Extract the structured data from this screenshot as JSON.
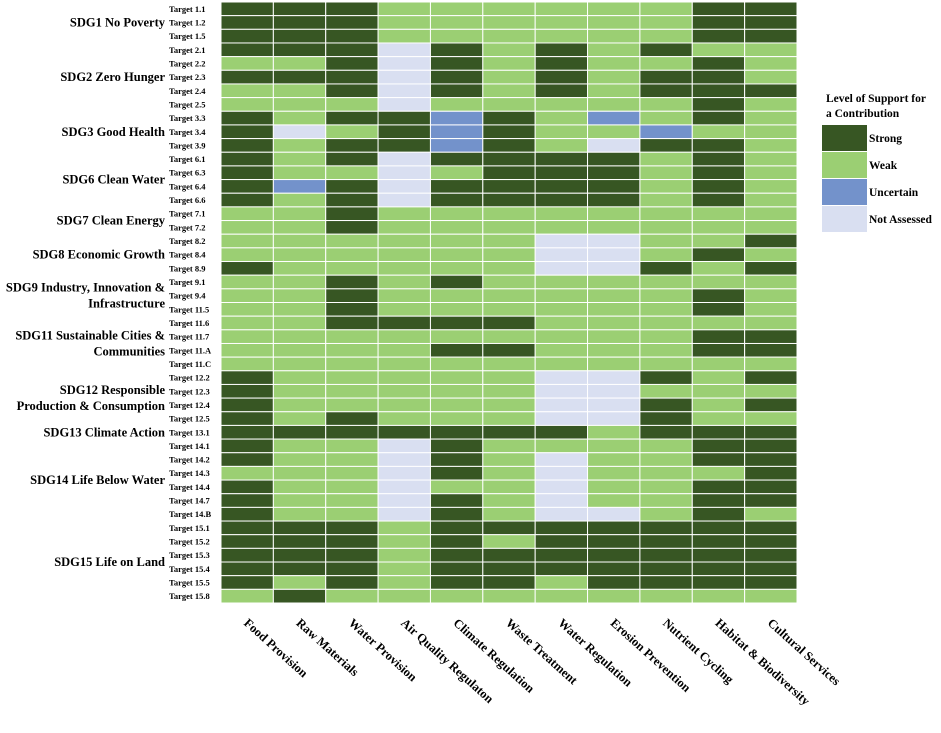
{
  "chart_data": {
    "type": "heatmap",
    "title": "",
    "xlabel": "",
    "ylabel": "",
    "columns": [
      "Food Provision",
      "Raw Materials",
      "Water Provision",
      "Air Quality Regulaton",
      "Climate Regulation",
      "Waste Treatment",
      "Water Regulation",
      "Erosion Prevention",
      "Nutrient Cycling",
      "Habitat & Biodiversity",
      "Cultural Services"
    ],
    "legend": {
      "title_lines": [
        "Level of Support for",
        "a Contribution"
      ],
      "items": [
        {
          "key": "S",
          "label": "Strong",
          "color": "#375623"
        },
        {
          "key": "W",
          "label": "Weak",
          "color": "#9BCF73"
        },
        {
          "key": "U",
          "label": "Uncertain",
          "color": "#7392CB"
        },
        {
          "key": "N",
          "label": "Not Assessed",
          "color": "#D9DFF1"
        }
      ]
    },
    "groups": [
      {
        "label_lines": [
          "SDG1 No Poverty"
        ],
        "targets": [
          "Target 1.1",
          "Target 1.2",
          "Target 1.5"
        ]
      },
      {
        "label_lines": [
          "SDG2 Zero Hunger"
        ],
        "targets": [
          "Target 2.1",
          "Target 2.2",
          "Target 2.3",
          "Target 2.4",
          "Target 2.5"
        ]
      },
      {
        "label_lines": [
          "SDG3 Good Health"
        ],
        "targets": [
          "Target 3.3",
          "Target 3.4",
          "Target 3.9"
        ]
      },
      {
        "label_lines": [
          "SDG6 Clean Water"
        ],
        "targets": [
          "Target 6.1",
          "Target 6.3",
          "Target 6.4",
          "Target 6.6"
        ]
      },
      {
        "label_lines": [
          "SDG7 Clean Energy"
        ],
        "targets": [
          "Target 7.1",
          "Target 7.2"
        ]
      },
      {
        "label_lines": [
          "SDG8 Economic Growth"
        ],
        "targets": [
          "Target 8.2",
          "Target 8.4",
          "Target 8.9"
        ]
      },
      {
        "label_lines": [
          "SDG9  Industry, Innovation &",
          "Infrastructure"
        ],
        "targets": [
          "Target 9.1",
          "Target 9.4",
          "Target 11.5"
        ]
      },
      {
        "label_lines": [
          "SDG11  Sustainable Cities &",
          "Communities"
        ],
        "targets": [
          "Target 11.6",
          "Target 11.7",
          "Target 11.A",
          "Target 11.C"
        ]
      },
      {
        "label_lines": [
          "SDG12 Responsible",
          "Production & Consumption"
        ],
        "targets": [
          "Target 12.2",
          "Target 12.3",
          "Target 12.4",
          "Target 12.5"
        ]
      },
      {
        "label_lines": [
          "SDG13 Climate Action"
        ],
        "targets": [
          "Target 13.1"
        ]
      },
      {
        "label_lines": [
          "SDG14 Life Below Water"
        ],
        "targets": [
          "Target 14.1",
          "Target 14.2",
          "Target 14.3",
          "Target 14.4",
          "Target 14.7",
          "Target 14.B"
        ]
      },
      {
        "label_lines": [
          "SDG15 Life on Land"
        ],
        "targets": [
          "Target 15.1",
          "Target 15.2",
          "Target 15.3",
          "Target 15.4",
          "Target 15.5",
          "Target 15.8"
        ]
      }
    ],
    "values": [
      [
        "S",
        "S",
        "S",
        "W",
        "W",
        "W",
        "W",
        "W",
        "W",
        "S",
        "S"
      ],
      [
        "S",
        "S",
        "S",
        "W",
        "W",
        "W",
        "W",
        "W",
        "W",
        "S",
        "S"
      ],
      [
        "S",
        "S",
        "S",
        "W",
        "W",
        "W",
        "W",
        "W",
        "W",
        "S",
        "S"
      ],
      [
        "S",
        "S",
        "S",
        "N",
        "S",
        "W",
        "S",
        "W",
        "S",
        "W",
        "W"
      ],
      [
        "W",
        "W",
        "S",
        "N",
        "S",
        "W",
        "S",
        "W",
        "W",
        "S",
        "W"
      ],
      [
        "S",
        "S",
        "S",
        "N",
        "S",
        "W",
        "S",
        "W",
        "S",
        "S",
        "W"
      ],
      [
        "W",
        "W",
        "S",
        "N",
        "S",
        "W",
        "S",
        "W",
        "S",
        "S",
        "S"
      ],
      [
        "W",
        "W",
        "W",
        "N",
        "W",
        "W",
        "W",
        "W",
        "W",
        "S",
        "W"
      ],
      [
        "S",
        "W",
        "S",
        "S",
        "U",
        "S",
        "W",
        "U",
        "W",
        "S",
        "W"
      ],
      [
        "S",
        "N",
        "W",
        "S",
        "U",
        "S",
        "W",
        "W",
        "U",
        "W",
        "W"
      ],
      [
        "S",
        "W",
        "S",
        "S",
        "U",
        "S",
        "W",
        "N",
        "S",
        "S",
        "W"
      ],
      [
        "S",
        "W",
        "S",
        "N",
        "S",
        "S",
        "S",
        "S",
        "W",
        "S",
        "W"
      ],
      [
        "S",
        "W",
        "W",
        "N",
        "W",
        "S",
        "S",
        "S",
        "W",
        "S",
        "W"
      ],
      [
        "S",
        "U",
        "S",
        "N",
        "S",
        "S",
        "S",
        "S",
        "W",
        "S",
        "W"
      ],
      [
        "S",
        "W",
        "S",
        "N",
        "S",
        "S",
        "S",
        "S",
        "W",
        "S",
        "W"
      ],
      [
        "W",
        "W",
        "S",
        "W",
        "W",
        "W",
        "W",
        "W",
        "W",
        "W",
        "W"
      ],
      [
        "W",
        "W",
        "S",
        "W",
        "W",
        "W",
        "W",
        "W",
        "W",
        "W",
        "W"
      ],
      [
        "W",
        "W",
        "W",
        "W",
        "W",
        "W",
        "N",
        "N",
        "W",
        "W",
        "S"
      ],
      [
        "W",
        "W",
        "W",
        "W",
        "W",
        "W",
        "N",
        "N",
        "W",
        "S",
        "W"
      ],
      [
        "S",
        "W",
        "W",
        "W",
        "W",
        "W",
        "N",
        "N",
        "S",
        "W",
        "S"
      ],
      [
        "W",
        "W",
        "S",
        "W",
        "S",
        "W",
        "W",
        "W",
        "W",
        "W",
        "W"
      ],
      [
        "W",
        "W",
        "S",
        "W",
        "W",
        "W",
        "W",
        "W",
        "W",
        "S",
        "W"
      ],
      [
        "W",
        "W",
        "S",
        "W",
        "W",
        "W",
        "W",
        "W",
        "W",
        "S",
        "W"
      ],
      [
        "W",
        "W",
        "S",
        "S",
        "S",
        "S",
        "W",
        "W",
        "W",
        "W",
        "W"
      ],
      [
        "W",
        "W",
        "W",
        "W",
        "W",
        "W",
        "W",
        "W",
        "W",
        "S",
        "S"
      ],
      [
        "W",
        "W",
        "W",
        "W",
        "S",
        "S",
        "W",
        "W",
        "W",
        "S",
        "S"
      ],
      [
        "W",
        "W",
        "W",
        "W",
        "W",
        "W",
        "W",
        "W",
        "W",
        "W",
        "W"
      ],
      [
        "S",
        "W",
        "W",
        "W",
        "W",
        "W",
        "N",
        "N",
        "S",
        "W",
        "S"
      ],
      [
        "S",
        "W",
        "W",
        "W",
        "W",
        "W",
        "N",
        "N",
        "W",
        "W",
        "W"
      ],
      [
        "S",
        "W",
        "W",
        "W",
        "W",
        "W",
        "N",
        "N",
        "S",
        "W",
        "S"
      ],
      [
        "S",
        "W",
        "S",
        "W",
        "W",
        "W",
        "N",
        "N",
        "S",
        "W",
        "W"
      ],
      [
        "S",
        "S",
        "S",
        "S",
        "S",
        "S",
        "S",
        "W",
        "S",
        "S",
        "S"
      ],
      [
        "S",
        "W",
        "W",
        "N",
        "S",
        "W",
        "W",
        "W",
        "W",
        "S",
        "S"
      ],
      [
        "S",
        "W",
        "W",
        "N",
        "S",
        "W",
        "N",
        "W",
        "W",
        "S",
        "S"
      ],
      [
        "W",
        "W",
        "W",
        "N",
        "S",
        "W",
        "N",
        "W",
        "W",
        "W",
        "S"
      ],
      [
        "S",
        "W",
        "W",
        "N",
        "W",
        "W",
        "N",
        "W",
        "W",
        "S",
        "S"
      ],
      [
        "S",
        "W",
        "W",
        "N",
        "S",
        "W",
        "N",
        "W",
        "W",
        "S",
        "S"
      ],
      [
        "S",
        "W",
        "W",
        "N",
        "S",
        "W",
        "N",
        "N",
        "W",
        "S",
        "W"
      ],
      [
        "S",
        "S",
        "S",
        "W",
        "S",
        "S",
        "S",
        "S",
        "S",
        "S",
        "S"
      ],
      [
        "S",
        "S",
        "S",
        "W",
        "S",
        "W",
        "S",
        "S",
        "S",
        "S",
        "S"
      ],
      [
        "S",
        "S",
        "S",
        "W",
        "S",
        "S",
        "S",
        "S",
        "S",
        "S",
        "S"
      ],
      [
        "S",
        "S",
        "S",
        "W",
        "S",
        "S",
        "S",
        "S",
        "S",
        "S",
        "S"
      ],
      [
        "S",
        "W",
        "S",
        "W",
        "S",
        "S",
        "W",
        "S",
        "S",
        "S",
        "S"
      ],
      [
        "W",
        "S",
        "W",
        "W",
        "W",
        "W",
        "W",
        "W",
        "W",
        "W",
        "W"
      ]
    ]
  }
}
